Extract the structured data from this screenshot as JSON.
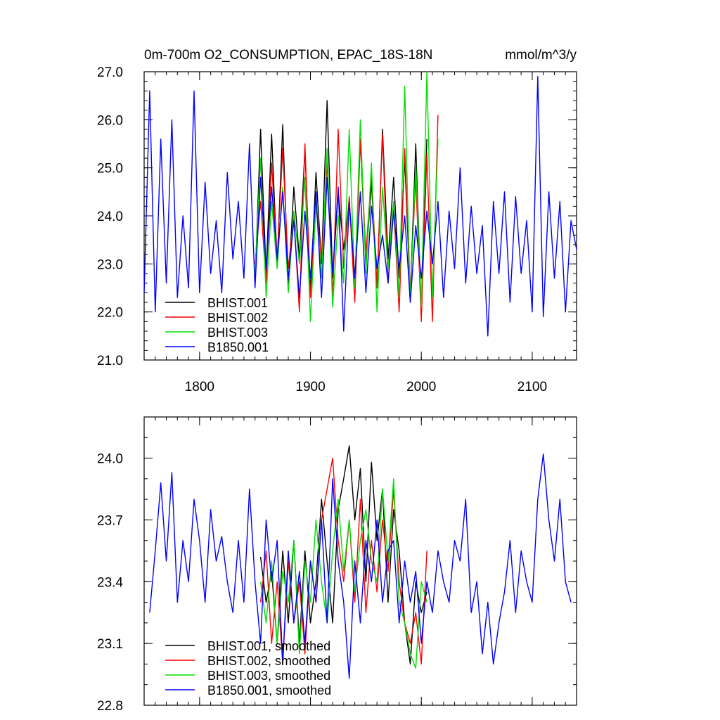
{
  "chart_data": [
    {
      "type": "line",
      "title": "0m-700m O2_CONSUMPTION, EPAC_18S-18N",
      "units": "mmol/m^3/y",
      "xlim": [
        1750,
        2140
      ],
      "ylim": [
        21.0,
        27.0
      ],
      "xticks": [
        1800,
        1900,
        2000,
        2100
      ],
      "xtick_labels": [
        "1800",
        "1900",
        "2000",
        "2100"
      ],
      "yticks": [
        21.0,
        22.0,
        23.0,
        24.0,
        25.0,
        26.0,
        27.0
      ],
      "ytick_labels": [
        "21.0",
        "22.0",
        "23.0",
        "24.0",
        "25.0",
        "26.0",
        "27.0"
      ],
      "legend_position": "lower-left",
      "series": [
        {
          "name": "BHIST.001",
          "color": "#000000",
          "x": [
            1850,
            1855,
            1860,
            1865,
            1870,
            1875,
            1880,
            1885,
            1890,
            1895,
            1900,
            1905,
            1910,
            1915,
            1920,
            1925,
            1930,
            1935,
            1940,
            1945,
            1950,
            1955,
            1960,
            1965,
            1970,
            1975,
            1980,
            1985,
            1990,
            1995,
            2000,
            2005
          ],
          "values": [
            22.6,
            25.8,
            22.8,
            25.7,
            23.0,
            25.9,
            22.5,
            24.6,
            23.1,
            25.4,
            22.4,
            24.9,
            23.0,
            26.4,
            22.7,
            24.5,
            23.3,
            24.3,
            22.6,
            25.6,
            23.0,
            24.7,
            22.5,
            25.8,
            23.1,
            24.8,
            22.7,
            25.2,
            22.3,
            25.5,
            22.0,
            25.6
          ]
        },
        {
          "name": "BHIST.002",
          "color": "#ff0000",
          "x": [
            1850,
            1855,
            1860,
            1865,
            1870,
            1875,
            1880,
            1885,
            1890,
            1895,
            1900,
            1905,
            1910,
            1915,
            1920,
            1925,
            1930,
            1935,
            1940,
            1945,
            1950,
            1955,
            1960,
            1965,
            1970,
            1975,
            1980,
            1985,
            1990,
            1995,
            2000,
            2005,
            2010,
            2015
          ],
          "values": [
            23.0,
            24.3,
            22.6,
            25.1,
            23.1,
            25.4,
            22.9,
            24.0,
            22.0,
            25.5,
            22.3,
            24.2,
            23.1,
            25.1,
            22.3,
            25.8,
            22.9,
            24.4,
            22.2,
            25.6,
            23.2,
            24.9,
            22.5,
            25.7,
            22.6,
            24.2,
            22.0,
            25.4,
            22.4,
            24.8,
            21.8,
            25.3,
            21.8,
            26.1
          ]
        },
        {
          "name": "BHIST.003",
          "color": "#00e000",
          "x": [
            1850,
            1855,
            1860,
            1865,
            1870,
            1875,
            1880,
            1885,
            1890,
            1895,
            1900,
            1905,
            1910,
            1915,
            1920,
            1925,
            1930,
            1935,
            1940,
            1945,
            1950,
            1955,
            1960,
            1965,
            1970,
            1975,
            1980,
            1985,
            1990,
            1995,
            2000,
            2005,
            2010,
            2015
          ],
          "values": [
            22.8,
            25.2,
            22.3,
            24.3,
            22.9,
            24.6,
            22.4,
            24.1,
            23.0,
            24.8,
            21.8,
            24.3,
            22.7,
            25.4,
            22.1,
            24.0,
            22.6,
            25.8,
            22.5,
            26.0,
            22.8,
            25.1,
            22.0,
            24.6,
            22.9,
            24.3,
            22.3,
            26.7,
            22.2,
            25.1,
            22.1,
            27.0,
            22.3,
            25.6
          ]
        },
        {
          "name": "B1850.001",
          "color": "#0000ff",
          "x": [
            1750,
            1755,
            1760,
            1765,
            1770,
            1775,
            1780,
            1785,
            1790,
            1795,
            1800,
            1805,
            1810,
            1815,
            1820,
            1825,
            1830,
            1835,
            1840,
            1845,
            1850,
            1855,
            1860,
            1865,
            1870,
            1875,
            1880,
            1885,
            1890,
            1895,
            1900,
            1905,
            1910,
            1915,
            1920,
            1925,
            1930,
            1935,
            1940,
            1945,
            1950,
            1955,
            1960,
            1965,
            1970,
            1975,
            1980,
            1985,
            1990,
            1995,
            2000,
            2005,
            2010,
            2015,
            2020,
            2025,
            2030,
            2035,
            2040,
            2045,
            2050,
            2055,
            2060,
            2065,
            2070,
            2075,
            2080,
            2085,
            2090,
            2095,
            2100,
            2105,
            2110,
            2115,
            2120,
            2125,
            2130,
            2135,
            2140
          ],
          "values": [
            22.4,
            26.6,
            22.0,
            25.6,
            22.6,
            26.0,
            22.3,
            24.0,
            22.5,
            26.6,
            22.4,
            24.7,
            22.8,
            23.9,
            22.4,
            24.9,
            23.1,
            24.3,
            22.7,
            25.5,
            22.5,
            24.8,
            22.9,
            24.6,
            23.1,
            24.5,
            22.7,
            23.9,
            22.3,
            24.1,
            22.7,
            24.5,
            22.3,
            24.8,
            22.8,
            24.6,
            21.6,
            24.3,
            22.7,
            24.5,
            22.4,
            24.2,
            22.9,
            23.6,
            22.6,
            24.1,
            22.9,
            24.0,
            22.2,
            23.8,
            22.7,
            24.1,
            23.0,
            24.3,
            22.3,
            24.1,
            22.9,
            25.0,
            22.6,
            24.2,
            22.8,
            23.8,
            21.5,
            24.3,
            22.8,
            24.5,
            22.2,
            24.4,
            22.8,
            23.9,
            22.0,
            26.9,
            21.9,
            24.5,
            22.7,
            24.3,
            22.0,
            23.9,
            23.3
          ]
        }
      ]
    },
    {
      "type": "line",
      "xlim": [
        1750,
        2140
      ],
      "ylim": [
        22.8,
        24.2
      ],
      "xticks": [
        1800,
        1900,
        2000,
        2100
      ],
      "yticks": [
        22.8,
        23.1,
        23.4,
        23.7,
        24.0
      ],
      "ytick_labels": [
        "22.8",
        "23.1",
        "23.4",
        "23.7",
        "24.0"
      ],
      "legend_position": "lower-left",
      "series": [
        {
          "name": "BHIST.001, smoothed",
          "color": "#000000",
          "x": [
            1855,
            1860,
            1865,
            1870,
            1875,
            1880,
            1885,
            1890,
            1895,
            1900,
            1905,
            1910,
            1915,
            1920,
            1925,
            1930,
            1935,
            1940,
            1945,
            1950,
            1955,
            1960,
            1965,
            1970,
            1975,
            1980,
            1985,
            1990,
            1995,
            2000,
            2005
          ],
          "values": [
            23.52,
            23.3,
            23.45,
            23.1,
            23.55,
            23.2,
            23.6,
            23.1,
            23.55,
            23.2,
            23.4,
            23.8,
            23.5,
            23.2,
            23.75,
            23.9,
            24.06,
            23.7,
            23.95,
            23.4,
            23.98,
            23.6,
            23.85,
            23.3,
            23.75,
            23.55,
            23.2,
            23.0,
            23.4,
            23.25,
            23.35
          ]
        },
        {
          "name": "BHIST.002, smoothed",
          "color": "#ff0000",
          "x": [
            1855,
            1860,
            1865,
            1870,
            1875,
            1880,
            1885,
            1890,
            1895,
            1900,
            1905,
            1910,
            1915,
            1920,
            1925,
            1930,
            1935,
            1940,
            1945,
            1950,
            1955,
            1960,
            1965,
            1970,
            1975,
            1980,
            1985,
            1990,
            1995,
            2000,
            2005
          ],
          "values": [
            23.3,
            23.55,
            23.1,
            23.4,
            23.0,
            23.5,
            23.2,
            23.4,
            23.05,
            23.5,
            23.3,
            23.7,
            23.85,
            24.0,
            23.6,
            23.4,
            23.7,
            23.3,
            23.8,
            23.25,
            23.6,
            23.35,
            23.7,
            23.45,
            23.85,
            23.4,
            23.2,
            23.1,
            23.25,
            23.0,
            23.55
          ]
        },
        {
          "name": "BHIST.003, smoothed",
          "color": "#00e000",
          "x": [
            1855,
            1860,
            1865,
            1870,
            1875,
            1880,
            1885,
            1890,
            1895,
            1900,
            1905,
            1910,
            1915,
            1920,
            1925,
            1930,
            1935,
            1940,
            1945,
            1950,
            1955,
            1960,
            1965,
            1970,
            1975,
            1980,
            1985,
            1990,
            1995,
            2000,
            2005
          ],
          "values": [
            23.4,
            23.2,
            23.5,
            23.1,
            23.45,
            23.3,
            23.6,
            23.05,
            23.5,
            23.3,
            23.7,
            23.4,
            23.2,
            23.55,
            23.8,
            23.45,
            23.7,
            23.35,
            23.6,
            23.75,
            23.5,
            23.4,
            23.85,
            23.5,
            23.9,
            23.3,
            23.2,
            23.05,
            22.98,
            23.4,
            23.3
          ]
        },
        {
          "name": "B1850.001, smoothed",
          "color": "#0000ff",
          "x": [
            1755,
            1760,
            1765,
            1770,
            1775,
            1780,
            1785,
            1790,
            1795,
            1800,
            1805,
            1810,
            1815,
            1820,
            1825,
            1830,
            1835,
            1840,
            1845,
            1850,
            1855,
            1860,
            1865,
            1870,
            1875,
            1880,
            1885,
            1890,
            1895,
            1900,
            1905,
            1910,
            1915,
            1920,
            1925,
            1930,
            1935,
            1940,
            1945,
            1950,
            1955,
            1960,
            1965,
            1970,
            1975,
            1980,
            1985,
            1990,
            1995,
            2000,
            2005,
            2010,
            2015,
            2020,
            2025,
            2030,
            2035,
            2040,
            2045,
            2050,
            2055,
            2060,
            2065,
            2070,
            2075,
            2080,
            2085,
            2090,
            2095,
            2100,
            2105,
            2110,
            2115,
            2120,
            2125,
            2130,
            2135
          ],
          "values": [
            23.25,
            23.55,
            23.88,
            23.5,
            23.93,
            23.3,
            23.6,
            23.4,
            23.8,
            23.6,
            23.3,
            23.75,
            23.5,
            23.62,
            23.4,
            23.25,
            23.6,
            23.3,
            23.85,
            23.4,
            23.1,
            23.7,
            23.4,
            23.6,
            23.0,
            23.55,
            23.2,
            23.45,
            23.1,
            23.5,
            23.3,
            23.7,
            23.2,
            23.9,
            23.5,
            23.3,
            22.93,
            23.5,
            23.2,
            23.6,
            23.4,
            23.7,
            23.3,
            23.55,
            23.6,
            23.2,
            23.5,
            23.3,
            23.45,
            23.1,
            23.4,
            23.25,
            23.55,
            23.4,
            23.3,
            23.6,
            23.5,
            23.8,
            23.25,
            23.4,
            23.05,
            23.3,
            23.0,
            23.2,
            23.35,
            23.6,
            23.25,
            23.55,
            23.4,
            23.3,
            23.8,
            24.02,
            23.7,
            23.5,
            23.8,
            23.4,
            23.3
          ]
        }
      ]
    }
  ]
}
